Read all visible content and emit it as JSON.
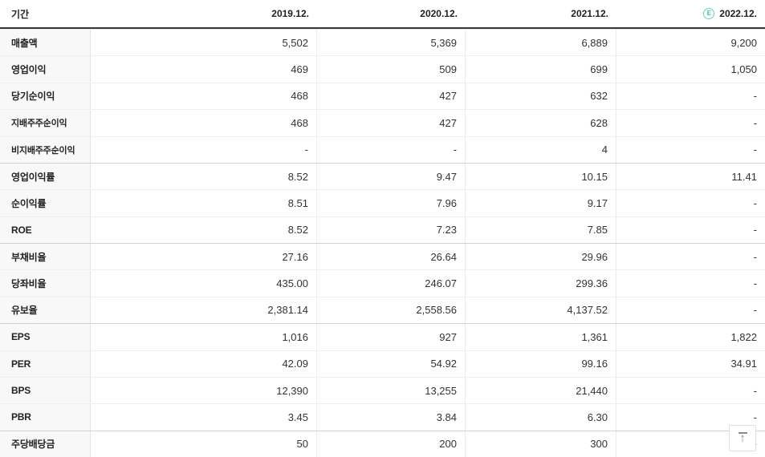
{
  "colors": {
    "estimate_green": "#45c0a0",
    "header_border": "#363636",
    "label_bg": "#f8f8f8"
  },
  "table": {
    "period_label": "기간",
    "columns": [
      {
        "label": "2019.12.",
        "estimate": false
      },
      {
        "label": "2020.12.",
        "estimate": false
      },
      {
        "label": "2021.12.",
        "estimate": false
      },
      {
        "label": "2022.12.",
        "estimate": true,
        "estimate_badge": "E"
      }
    ],
    "rows": [
      {
        "label": "매출액",
        "sub": false,
        "group_start": false,
        "values": [
          "5,502",
          "5,369",
          "6,889",
          "9,200"
        ]
      },
      {
        "label": "영업이익",
        "sub": false,
        "group_start": false,
        "values": [
          "469",
          "509",
          "699",
          "1,050"
        ]
      },
      {
        "label": "당기순이익",
        "sub": false,
        "group_start": false,
        "values": [
          "468",
          "427",
          "632",
          "-"
        ]
      },
      {
        "label": "지배주주순이익",
        "sub": true,
        "group_start": false,
        "values": [
          "468",
          "427",
          "628",
          "-"
        ]
      },
      {
        "label": "비지배주주순이익",
        "sub": true,
        "group_start": false,
        "values": [
          "-",
          "-",
          "4",
          "-"
        ]
      },
      {
        "label": "영업이익률",
        "sub": false,
        "group_start": true,
        "values": [
          "8.52",
          "9.47",
          "10.15",
          "11.41"
        ]
      },
      {
        "label": "순이익률",
        "sub": false,
        "group_start": false,
        "values": [
          "8.51",
          "7.96",
          "9.17",
          "-"
        ]
      },
      {
        "label": "ROE",
        "sub": false,
        "group_start": false,
        "values": [
          "8.52",
          "7.23",
          "7.85",
          "-"
        ]
      },
      {
        "label": "부채비율",
        "sub": false,
        "group_start": true,
        "values": [
          "27.16",
          "26.64",
          "29.96",
          "-"
        ]
      },
      {
        "label": "당좌비율",
        "sub": false,
        "group_start": false,
        "values": [
          "435.00",
          "246.07",
          "299.36",
          "-"
        ]
      },
      {
        "label": "유보율",
        "sub": false,
        "group_start": false,
        "values": [
          "2,381.14",
          "2,558.56",
          "4,137.52",
          "-"
        ]
      },
      {
        "label": "EPS",
        "sub": false,
        "group_start": true,
        "values": [
          "1,016",
          "927",
          "1,361",
          "1,822"
        ]
      },
      {
        "label": "PER",
        "sub": false,
        "group_start": false,
        "values": [
          "42.09",
          "54.92",
          "99.16",
          "34.91"
        ]
      },
      {
        "label": "BPS",
        "sub": false,
        "group_start": false,
        "values": [
          "12,390",
          "13,255",
          "21,440",
          "-"
        ]
      },
      {
        "label": "PBR",
        "sub": false,
        "group_start": false,
        "values": [
          "3.45",
          "3.84",
          "6.30",
          "-"
        ]
      },
      {
        "label": "주당배당금",
        "sub": false,
        "group_start": true,
        "values": [
          "50",
          "200",
          "300",
          "-"
        ]
      }
    ]
  },
  "scroll_top_button": {
    "icon": "scroll-to-top",
    "arrow": "↑"
  }
}
